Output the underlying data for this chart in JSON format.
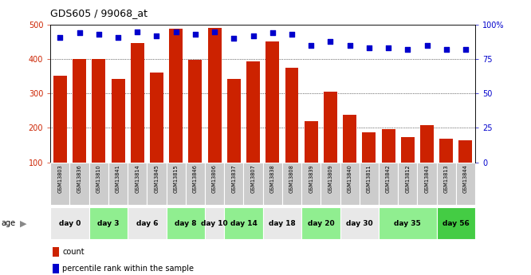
{
  "title": "GDS605 / 99068_at",
  "samples": [
    "GSM13803",
    "GSM13836",
    "GSM13810",
    "GSM13841",
    "GSM13814",
    "GSM13845",
    "GSM13815",
    "GSM13846",
    "GSM13806",
    "GSM13837",
    "GSM13807",
    "GSM13838",
    "GSM13808",
    "GSM13839",
    "GSM13809",
    "GSM13840",
    "GSM13811",
    "GSM13842",
    "GSM13812",
    "GSM13843",
    "GSM13813",
    "GSM13844"
  ],
  "counts": [
    352,
    401,
    401,
    343,
    447,
    362,
    488,
    399,
    491,
    343,
    393,
    452,
    375,
    219,
    305,
    237,
    188,
    196,
    174,
    207,
    169,
    163
  ],
  "percentiles": [
    91,
    94,
    93,
    91,
    95,
    92,
    95,
    93,
    95,
    90,
    92,
    94,
    93,
    85,
    88,
    85,
    83,
    83,
    82,
    85,
    82,
    82
  ],
  "age_groups": [
    {
      "label": "day 0",
      "start": 0,
      "end": 2,
      "color": "#e8e8e8"
    },
    {
      "label": "day 3",
      "start": 2,
      "end": 4,
      "color": "#90ee90"
    },
    {
      "label": "day 6",
      "start": 4,
      "end": 6,
      "color": "#e8e8e8"
    },
    {
      "label": "day 8",
      "start": 6,
      "end": 8,
      "color": "#90ee90"
    },
    {
      "label": "day 10",
      "start": 8,
      "end": 9,
      "color": "#e8e8e8"
    },
    {
      "label": "day 14",
      "start": 9,
      "end": 11,
      "color": "#90ee90"
    },
    {
      "label": "day 18",
      "start": 11,
      "end": 13,
      "color": "#e8e8e8"
    },
    {
      "label": "day 20",
      "start": 13,
      "end": 15,
      "color": "#90ee90"
    },
    {
      "label": "day 30",
      "start": 15,
      "end": 17,
      "color": "#e8e8e8"
    },
    {
      "label": "day 35",
      "start": 17,
      "end": 20,
      "color": "#90ee90"
    },
    {
      "label": "day 56",
      "start": 20,
      "end": 22,
      "color": "#44cc44"
    }
  ],
  "sample_box_color": "#cccccc",
  "bar_color": "#cc2200",
  "dot_color": "#0000cc",
  "ylim_left": [
    100,
    500
  ],
  "ylim_right": [
    0,
    100
  ],
  "yticks_left": [
    100,
    200,
    300,
    400,
    500
  ],
  "yticks_right": [
    0,
    25,
    50,
    75,
    100
  ],
  "grid_yticks": [
    200,
    300,
    400
  ],
  "ylabel_left_color": "#cc2200",
  "ylabel_right_color": "#0000cc",
  "legend_count_label": "count",
  "legend_pct_label": "percentile rank within the sample",
  "age_label": "age"
}
